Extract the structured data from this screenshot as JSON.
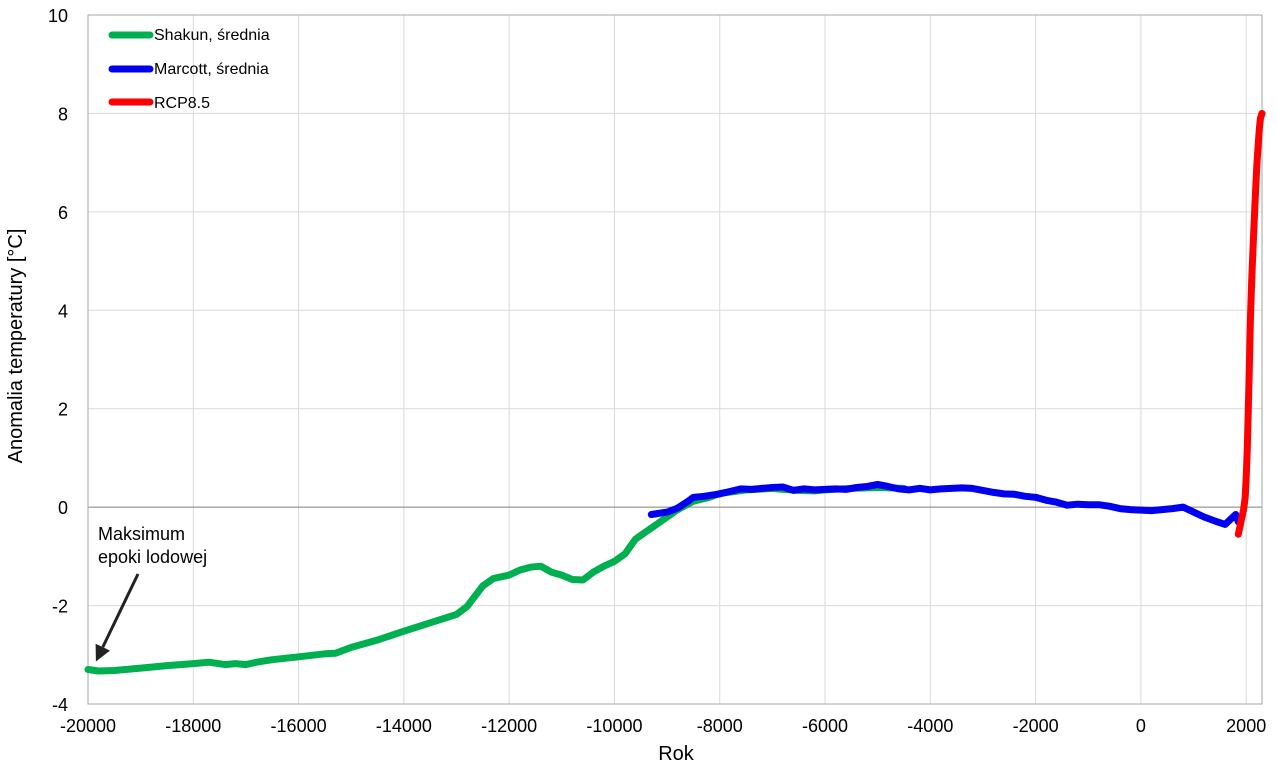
{
  "chart_data": {
    "type": "line",
    "title": "",
    "xlabel": "Rok",
    "ylabel": "Anomalia temperatury [°C]",
    "xlim": [
      -20000,
      2300
    ],
    "ylim": [
      -4,
      10
    ],
    "x_ticks": [
      -20000,
      -18000,
      -16000,
      -14000,
      -12000,
      -10000,
      -8000,
      -6000,
      -4000,
      -2000,
      0,
      2000
    ],
    "y_ticks": [
      -4,
      -2,
      0,
      2,
      4,
      6,
      8,
      10
    ],
    "grid": true,
    "legend_position": "top-left",
    "series": [
      {
        "name": "Shakun, średnia",
        "color": "#00b050",
        "x": [
          -20000,
          -19800,
          -19500,
          -19000,
          -18500,
          -18000,
          -17700,
          -17400,
          -17200,
          -17000,
          -16800,
          -16500,
          -16000,
          -15500,
          -15300,
          -15000,
          -14500,
          -14000,
          -13500,
          -13000,
          -12800,
          -12500,
          -12300,
          -12000,
          -11800,
          -11600,
          -11400,
          -11200,
          -11000,
          -10800,
          -10600,
          -10400,
          -10200,
          -10000,
          -9800,
          -9600,
          -9400,
          -9200,
          -9000,
          -8800,
          -8500,
          -8200,
          -8000,
          -7700,
          -7500,
          -7000,
          -6800,
          -6500,
          -6200,
          -6000,
          -5500,
          -5000,
          -4500
        ],
        "values": [
          -3.3,
          -3.33,
          -3.32,
          -3.27,
          -3.22,
          -3.18,
          -3.15,
          -3.2,
          -3.18,
          -3.2,
          -3.15,
          -3.1,
          -3.04,
          -2.98,
          -2.97,
          -2.85,
          -2.7,
          -2.52,
          -2.35,
          -2.18,
          -2.02,
          -1.6,
          -1.45,
          -1.38,
          -1.28,
          -1.22,
          -1.2,
          -1.32,
          -1.38,
          -1.47,
          -1.48,
          -1.32,
          -1.2,
          -1.1,
          -0.95,
          -0.65,
          -0.5,
          -0.35,
          -0.2,
          -0.05,
          0.12,
          0.2,
          0.28,
          0.32,
          0.35,
          0.38,
          0.36,
          0.34,
          0.33,
          0.35,
          0.38,
          0.4,
          0.38
        ]
      },
      {
        "name": "Marcott, średnia",
        "color": "#0000ee",
        "x": [
          -9300,
          -9000,
          -8800,
          -8600,
          -8500,
          -8300,
          -8000,
          -7800,
          -7600,
          -7400,
          -7200,
          -7000,
          -6800,
          -6600,
          -6400,
          -6200,
          -6000,
          -5800,
          -5600,
          -5400,
          -5200,
          -5000,
          -4800,
          -4600,
          -4400,
          -4200,
          -4000,
          -3800,
          -3600,
          -3400,
          -3200,
          -3000,
          -2800,
          -2600,
          -2400,
          -2200,
          -2000,
          -1800,
          -1600,
          -1400,
          -1200,
          -1000,
          -800,
          -600,
          -400,
          -200,
          0,
          200,
          400,
          600,
          800,
          1000,
          1200,
          1400,
          1600,
          1700,
          1800,
          1850
        ],
        "values": [
          -0.15,
          -0.1,
          -0.02,
          0.12,
          0.2,
          0.22,
          0.27,
          0.32,
          0.37,
          0.36,
          0.38,
          0.4,
          0.41,
          0.34,
          0.37,
          0.35,
          0.36,
          0.37,
          0.36,
          0.4,
          0.42,
          0.46,
          0.42,
          0.37,
          0.35,
          0.38,
          0.35,
          0.37,
          0.38,
          0.39,
          0.38,
          0.34,
          0.3,
          0.27,
          0.26,
          0.22,
          0.2,
          0.14,
          0.1,
          0.04,
          0.06,
          0.05,
          0.05,
          0.02,
          -0.03,
          -0.05,
          -0.06,
          -0.07,
          -0.05,
          -0.03,
          0.0,
          -0.1,
          -0.2,
          -0.28,
          -0.35,
          -0.25,
          -0.15,
          -0.3
        ]
      },
      {
        "name": "RCP8.5",
        "color": "#ff0000",
        "x": [
          1850,
          1880,
          1900,
          1920,
          1950,
          1980,
          2000,
          2020,
          2040,
          2060,
          2080,
          2100,
          2130,
          2160,
          2200,
          2230,
          2250,
          2270,
          2300
        ],
        "values": [
          -0.55,
          -0.4,
          -0.3,
          -0.2,
          -0.05,
          0.2,
          0.6,
          1.2,
          2.0,
          2.9,
          3.8,
          4.5,
          5.3,
          6.0,
          6.9,
          7.4,
          7.7,
          7.9,
          8.0
        ]
      }
    ],
    "annotations": {
      "ice_age_line1": "Maksimum",
      "ice_age_line2": "epoki lodowej",
      "arrow_target": {
        "x": -19850,
        "y": -3.3
      }
    }
  }
}
